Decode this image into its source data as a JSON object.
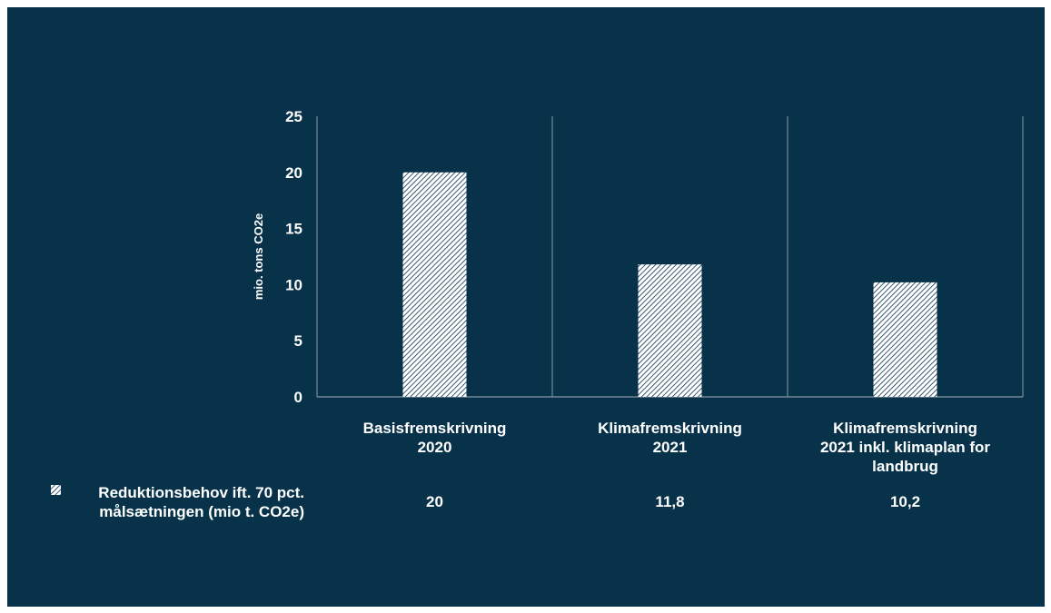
{
  "chart_data": {
    "type": "bar",
    "categories": [
      [
        "Basisfremskrivning",
        "2020"
      ],
      [
        "Klimafremskrivning",
        "2021"
      ],
      [
        "Klimafremskrivning",
        "2021 inkl. klimaplan for",
        "landbrug"
      ]
    ],
    "series": [
      {
        "name": [
          "Reduktionsbehov ift. 70 pct.",
          "målsætningen (mio t. CO2e)"
        ],
        "values": [
          20,
          11.8,
          10.2
        ],
        "value_labels": [
          "20",
          "11,8",
          "10,2"
        ]
      }
    ],
    "ylabel": "mio. tons CO2e",
    "ylim": [
      0,
      25
    ],
    "yticks": [
      "0",
      "5",
      "10",
      "15",
      "20",
      "25"
    ],
    "data_table": true,
    "colors": {
      "background": "#07324a",
      "bar_fill": "#ffffff",
      "bar_hatch": "#07324a",
      "gridline": "#8899a6",
      "text": "#ffffff"
    }
  }
}
